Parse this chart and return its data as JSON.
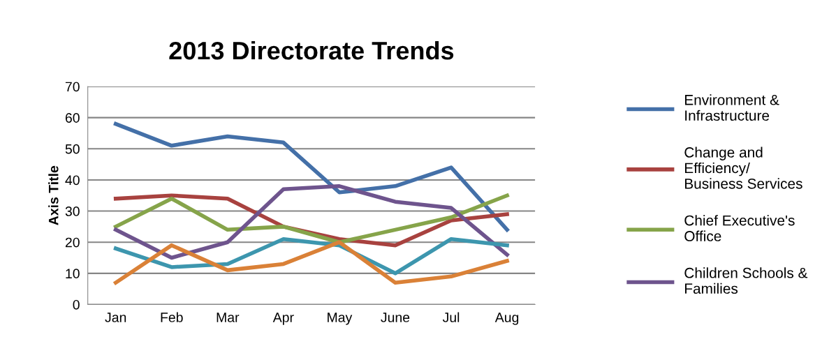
{
  "chart_data": {
    "type": "line",
    "title": "2013 Directorate Trends",
    "ylabel": "Axis Title",
    "categories": [
      "Jan",
      "Feb",
      "Mar",
      "Apr",
      "May",
      "June",
      "Jul",
      "Aug"
    ],
    "ylim": [
      0,
      70
    ],
    "yticks": [
      0,
      10,
      20,
      30,
      40,
      50,
      60,
      70
    ],
    "grid": "y",
    "legend": "right",
    "marker": "none",
    "line_style": "solid",
    "series": [
      {
        "name": "Environment & Infrastructure",
        "color": "#4470a8",
        "values": [
          58,
          51,
          54,
          52,
          36,
          38,
          44,
          24
        ]
      },
      {
        "name": "Change and Efficiency/ Business Services",
        "color": "#a8423f",
        "values": [
          34,
          35,
          34,
          25,
          21,
          19,
          27,
          29
        ]
      },
      {
        "name": "Chief Executive's Office",
        "color": "#86a44a",
        "values": [
          25,
          34,
          24,
          25,
          20,
          24,
          28,
          35
        ]
      },
      {
        "name": "Children Schools & Families",
        "color": "#6e548d",
        "values": [
          24,
          15,
          20,
          37,
          38,
          33,
          31,
          16
        ]
      },
      {
        "color": "#3d96ae",
        "values": [
          18,
          12,
          13,
          21,
          19,
          10,
          21,
          19
        ]
      },
      {
        "color": "#da8137",
        "values": [
          7,
          19,
          11,
          13,
          20,
          7,
          9,
          14
        ]
      }
    ]
  }
}
